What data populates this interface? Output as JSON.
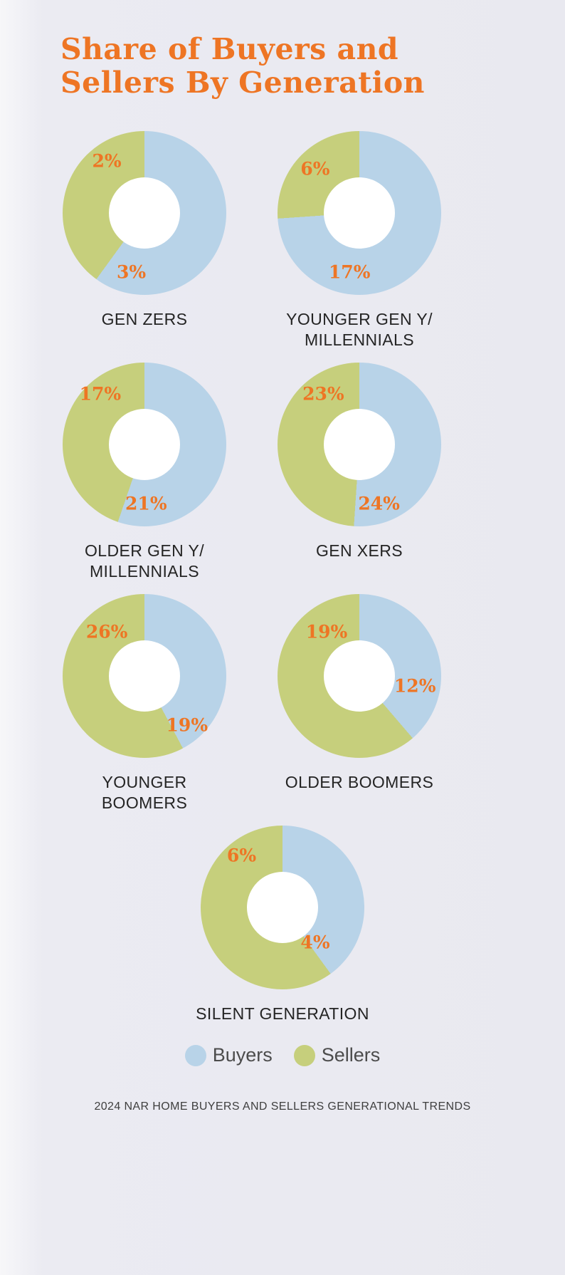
{
  "title": {
    "line1": "Share of Buyers and",
    "line2": "Sellers By Generation"
  },
  "colors": {
    "background": "#e9e9f0",
    "accent_orange": "#ee7524",
    "donut_hole": "#ffffff",
    "label_text": "#242424"
  },
  "footer": "2024 NAR HOME BUYERS AND SELLERS GENERATIONAL TRENDS",
  "chart_data": {
    "type": "pie",
    "subtype": "donut",
    "unit": "%",
    "title": "Share of Buyers and Sellers By Generation",
    "legend_position": "bottom",
    "legend": [
      {
        "name": "Buyers",
        "color": "#b8d3e8"
      },
      {
        "name": "Sellers",
        "color": "#c6cf7c"
      }
    ],
    "charts": [
      {
        "label": [
          "GEN ZERS"
        ],
        "buyers": 3,
        "sellers": 2,
        "label_pos": {
          "sellers": [
            27,
            18
          ],
          "buyers": [
            42,
            86
          ]
        }
      },
      {
        "label": [
          "YOUNGER GEN Y/",
          "MILLENNIALS"
        ],
        "buyers": 17,
        "sellers": 6,
        "label_pos": {
          "sellers": [
            23,
            23
          ],
          "buyers": [
            44,
            86
          ]
        }
      },
      {
        "label": [
          "OLDER GEN Y/",
          "MILLENNIALS"
        ],
        "buyers": 21,
        "sellers": 17,
        "label_pos": {
          "sellers": [
            23,
            19
          ],
          "buyers": [
            51,
            86
          ]
        }
      },
      {
        "label": [
          "GEN XERS"
        ],
        "buyers": 24,
        "sellers": 23,
        "label_pos": {
          "sellers": [
            28,
            19
          ],
          "buyers": [
            62,
            86
          ]
        }
      },
      {
        "label": [
          "YOUNGER",
          "BOOMERS"
        ],
        "buyers": 19,
        "sellers": 26,
        "label_pos": {
          "sellers": [
            27,
            23
          ],
          "buyers": [
            76,
            80
          ]
        }
      },
      {
        "label": [
          "OLDER BOOMERS"
        ],
        "buyers": 12,
        "sellers": 19,
        "label_pos": {
          "sellers": [
            30,
            23
          ],
          "buyers": [
            84,
            56
          ]
        }
      },
      {
        "label": [
          "SILENT GENERATION"
        ],
        "buyers": 4,
        "sellers": 6,
        "label_pos": {
          "sellers": [
            25,
            18
          ],
          "buyers": [
            70,
            71
          ]
        }
      }
    ]
  }
}
